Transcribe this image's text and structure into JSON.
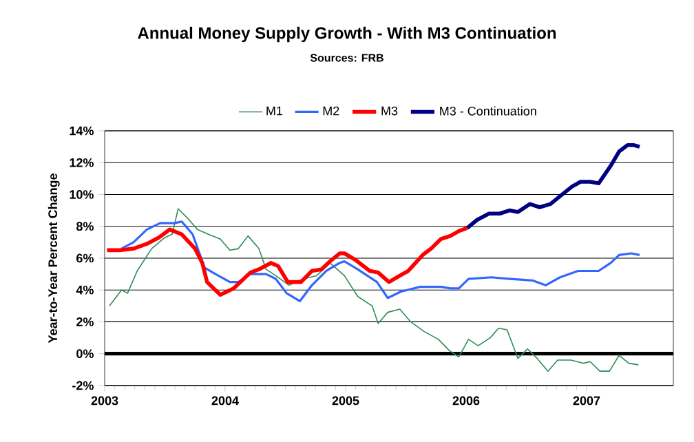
{
  "chart_data": {
    "type": "line",
    "title": "Annual Money Supply Growth - With M3 Continuation",
    "subtitle": "Sources: FRB",
    "ylabel": "Year-to-Year Percent Change",
    "xlim": [
      2003,
      2007.72
    ],
    "xticks": [
      2003,
      2004,
      2005,
      2006,
      2007
    ],
    "ylim": [
      -2,
      14
    ],
    "yticks": [
      {
        "value": -2,
        "label": "-2%"
      },
      {
        "value": 0,
        "label": "0%"
      },
      {
        "value": 2,
        "label": "2%"
      },
      {
        "value": 4,
        "label": "4%"
      },
      {
        "value": 6,
        "label": "6%"
      },
      {
        "value": 8,
        "label": "8%"
      },
      {
        "value": 10,
        "label": "10%"
      },
      {
        "value": 12,
        "label": "12%"
      },
      {
        "value": 14,
        "label": "14%"
      }
    ],
    "grid": "y",
    "legend": "top",
    "marker": "none",
    "line_style": "solid",
    "ref_lines": [
      {
        "axis": "y",
        "value": 0,
        "color": "#000000"
      }
    ],
    "series": [
      {
        "name": "M1",
        "color": "#2e8b57",
        "x": [
          2003.04,
          2003.11,
          2003.14,
          2003.19,
          2003.27,
          2003.39,
          2003.5,
          2003.56,
          2003.61,
          2003.69,
          2003.77,
          2003.86,
          2003.96,
          2004.04,
          2004.11,
          2004.19,
          2004.28,
          2004.34,
          2004.42,
          2004.53,
          2004.65,
          2004.76,
          2004.87,
          2004.99,
          2005.1,
          2005.22,
          2005.27,
          2005.35,
          2005.45,
          2005.54,
          2005.65,
          2005.77,
          2005.86,
          2005.94,
          2006.02,
          2006.1,
          2006.2,
          2006.27,
          2006.34,
          2006.43,
          2006.51,
          2006.59,
          2006.68,
          2006.76,
          2006.87,
          2006.97,
          2007.03,
          2007.11,
          2007.19,
          2007.27,
          2007.35,
          2007.43
        ],
        "values": [
          3.0,
          3.7,
          4.0,
          3.8,
          5.2,
          6.6,
          7.3,
          7.5,
          9.1,
          8.5,
          7.8,
          7.5,
          7.2,
          6.5,
          6.6,
          7.4,
          6.6,
          5.3,
          4.9,
          4.3,
          4.7,
          4.9,
          5.7,
          4.9,
          3.6,
          3.0,
          1.9,
          2.6,
          2.8,
          2.0,
          1.4,
          0.9,
          0.2,
          -0.2,
          0.9,
          0.5,
          1.0,
          1.6,
          1.5,
          -0.3,
          0.3,
          -0.3,
          -1.1,
          -0.4,
          -0.4,
          -0.6,
          -0.5,
          -1.1,
          -1.1,
          -0.1,
          -0.6,
          -0.7
        ]
      },
      {
        "name": "M2",
        "color": "#3366ff",
        "x": [
          2003.14,
          2003.24,
          2003.35,
          2003.46,
          2003.58,
          2003.64,
          2003.73,
          2003.83,
          2003.92,
          2004.04,
          2004.11,
          2004.21,
          2004.34,
          2004.42,
          2004.51,
          2004.62,
          2004.72,
          2004.84,
          2004.95,
          2004.99,
          2005.1,
          2005.26,
          2005.35,
          2005.46,
          2005.62,
          2005.79,
          2005.87,
          2005.94,
          2006.02,
          2006.21,
          2006.36,
          2006.55,
          2006.66,
          2006.78,
          2006.93,
          2007.1,
          2007.2,
          2007.27,
          2007.37,
          2007.44
        ],
        "values": [
          6.6,
          7.0,
          7.8,
          8.2,
          8.2,
          8.3,
          7.5,
          5.4,
          5.0,
          4.5,
          4.5,
          5.0,
          5.0,
          4.7,
          3.8,
          3.3,
          4.3,
          5.2,
          5.7,
          5.8,
          5.3,
          4.5,
          3.5,
          3.9,
          4.2,
          4.2,
          4.1,
          4.1,
          4.7,
          4.8,
          4.7,
          4.6,
          4.3,
          4.8,
          5.2,
          5.2,
          5.7,
          6.2,
          6.3,
          6.2
        ]
      },
      {
        "name": "M3",
        "color": "#ff0000",
        "x": [
          2003.02,
          2003.12,
          2003.24,
          2003.35,
          2003.45,
          2003.54,
          2003.64,
          2003.75,
          2003.81,
          2003.85,
          2003.96,
          2004.07,
          2004.21,
          2004.28,
          2004.38,
          2004.44,
          2004.52,
          2004.63,
          2004.72,
          2004.8,
          2004.87,
          2004.95,
          2004.99,
          2005.08,
          2005.2,
          2005.27,
          2005.36,
          2005.45,
          2005.52,
          2005.64,
          2005.71,
          2005.79,
          2005.87,
          2005.94,
          2006.01
        ],
        "values": [
          6.5,
          6.5,
          6.6,
          6.9,
          7.3,
          7.8,
          7.5,
          6.6,
          5.7,
          4.5,
          3.7,
          4.1,
          5.1,
          5.3,
          5.7,
          5.5,
          4.5,
          4.5,
          5.2,
          5.3,
          5.8,
          6.3,
          6.3,
          5.9,
          5.2,
          5.1,
          4.5,
          4.9,
          5.2,
          6.2,
          6.6,
          7.2,
          7.4,
          7.7,
          7.9
        ]
      },
      {
        "name": "M3 - Continuation",
        "color": "#000080",
        "x": [
          2006.01,
          2006.09,
          2006.19,
          2006.28,
          2006.36,
          2006.43,
          2006.53,
          2006.61,
          2006.7,
          2006.78,
          2006.88,
          2006.95,
          2007.03,
          2007.1,
          2007.2,
          2007.27,
          2007.34,
          2007.39,
          2007.44
        ],
        "values": [
          7.9,
          8.4,
          8.8,
          8.8,
          9.0,
          8.9,
          9.4,
          9.2,
          9.4,
          9.9,
          10.5,
          10.8,
          10.8,
          10.7,
          11.8,
          12.7,
          13.1,
          13.1,
          13.0
        ]
      }
    ]
  }
}
